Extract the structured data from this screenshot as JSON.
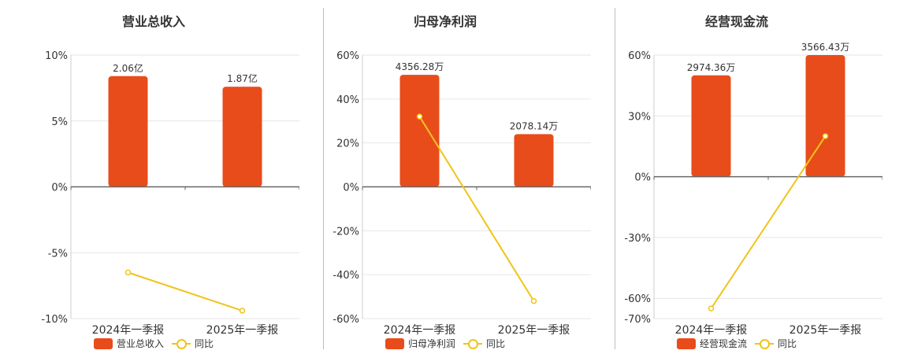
{
  "colors": {
    "bar": "#e84c1b",
    "line": "#f0c419",
    "grid": "#e6e6e6",
    "axis": "#666666"
  },
  "chart_data": [
    {
      "type": "bar",
      "title": "营业总收入",
      "categories": [
        "2024年一季报",
        "2025年一季报"
      ],
      "series": [
        {
          "name": "营业总收入",
          "type": "bar",
          "values": [
            8.4,
            7.6
          ],
          "labels": [
            "2.06亿",
            "1.87亿"
          ]
        },
        {
          "name": "同比",
          "type": "line",
          "values": [
            -6.5,
            -9.4
          ]
        }
      ],
      "yticks": [
        "10%",
        "5%",
        "0%",
        "-5%",
        "-10%"
      ],
      "ylim": [
        -10,
        10
      ],
      "grid": true,
      "legend": "bottom-center"
    },
    {
      "type": "bar",
      "title": "归母净利润",
      "categories": [
        "2024年一季报",
        "2025年一季报"
      ],
      "series": [
        {
          "name": "归母净利润",
          "type": "bar",
          "values": [
            51,
            24
          ],
          "labels": [
            "4356.28万",
            "2078.14万"
          ]
        },
        {
          "name": "同比",
          "type": "line",
          "values": [
            32,
            -52
          ]
        }
      ],
      "yticks": [
        "60%",
        "40%",
        "20%",
        "0%",
        "-20%",
        "-40%",
        "-60%"
      ],
      "ylim": [
        -60,
        60
      ],
      "grid": true,
      "legend": "bottom-center"
    },
    {
      "type": "bar",
      "title": "经营现金流",
      "categories": [
        "2024年一季报",
        "2025年一季报"
      ],
      "series": [
        {
          "name": "经营现金流",
          "type": "bar",
          "values": [
            50,
            60
          ],
          "labels": [
            "2974.36万",
            "3566.43万"
          ]
        },
        {
          "name": "同比",
          "type": "line",
          "values": [
            -65,
            20
          ]
        }
      ],
      "yticks": [
        "60%",
        "30%",
        "0%",
        "-30%",
        "-60%",
        "-70%"
      ],
      "ylim": [
        -70,
        60
      ],
      "grid": true,
      "legend": "bottom-center"
    }
  ]
}
